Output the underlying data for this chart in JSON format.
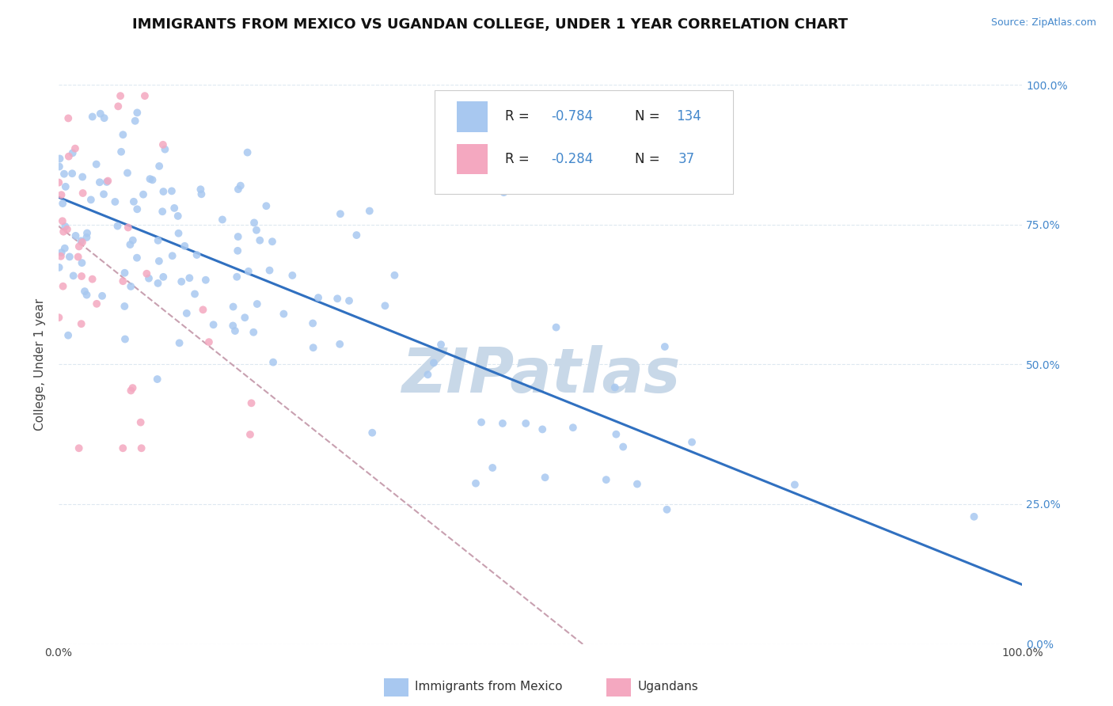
{
  "title": "IMMIGRANTS FROM MEXICO VS UGANDAN COLLEGE, UNDER 1 YEAR CORRELATION CHART",
  "source_text": "Source: ZipAtlas.com",
  "ylabel": "College, Under 1 year",
  "x_tick_labels": [
    "0.0%",
    "100.0%"
  ],
  "y_tick_labels_right": [
    "0.0%",
    "25.0%",
    "50.0%",
    "75.0%",
    "100.0%"
  ],
  "xlim": [
    0.0,
    100.0
  ],
  "ylim": [
    0.0,
    100.0
  ],
  "legend_label1": "Immigrants from Mexico",
  "legend_label2": "Ugandans",
  "R1": -0.784,
  "N1": 134,
  "R2": -0.284,
  "N2": 37,
  "scatter_color1": "#a8c8f0",
  "scatter_color2": "#f4a8c0",
  "line_color1": "#3070c0",
  "line_color2": "#c8a0b0",
  "watermark": "ZIPatlas",
  "watermark_color": "#c8d8e8",
  "background_color": "#ffffff",
  "grid_color": "#dde8f0",
  "title_fontsize": 13,
  "axis_label_fontsize": 11,
  "tick_fontsize": 10,
  "legend_fontsize": 12,
  "seed": 12
}
